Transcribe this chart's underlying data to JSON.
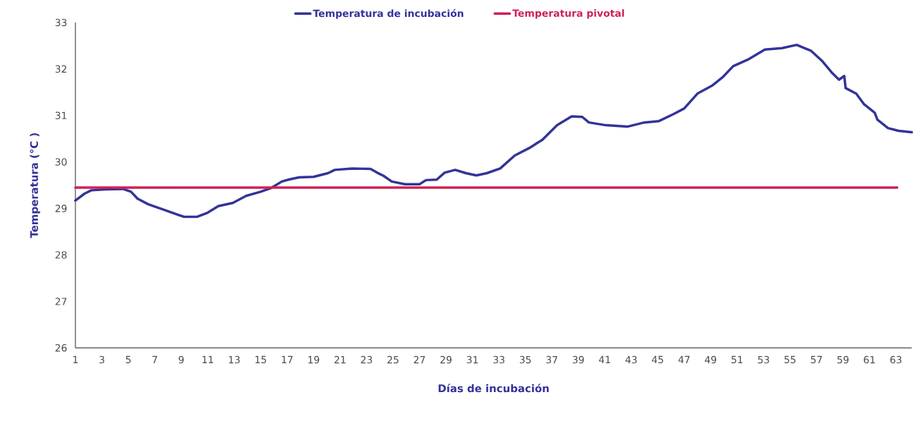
{
  "chart_data": {
    "type": "line",
    "xlabel": "Días de incubación",
    "ylabel": "Temperatura (°C )",
    "xlim": [
      1,
      64.2
    ],
    "ylim": [
      26,
      33
    ],
    "xticks": [
      1,
      3,
      5,
      7,
      9,
      11,
      13,
      15,
      17,
      19,
      21,
      23,
      25,
      27,
      29,
      31,
      33,
      35,
      37,
      39,
      41,
      43,
      45,
      47,
      49,
      51,
      53,
      55,
      57,
      59,
      61,
      63
    ],
    "yticks": [
      26,
      27,
      28,
      29,
      30,
      31,
      32,
      33
    ],
    "grid": false,
    "legend": "top",
    "marker": "none",
    "line_style": "solid",
    "series": [
      {
        "name": "Temperatura de incubación",
        "color": "#333399",
        "x": [
          1,
          1.7,
          2.2,
          3.3,
          4.6,
          5.2,
          5.7,
          6.5,
          7.6,
          8.5,
          9.2,
          10.2,
          11,
          11.8,
          12.9,
          13.9,
          15,
          15.8,
          16.6,
          17.1,
          17.9,
          19,
          20.1,
          20.6,
          21.9,
          23.3,
          23.8,
          24.3,
          24.9,
          25.9,
          27,
          27.5,
          28.3,
          28.9,
          29.7,
          30.5,
          31.3,
          32.1,
          33.1,
          34.2,
          35.3,
          36.3,
          37.4,
          38.5,
          39.3,
          39.8,
          41.1,
          42.7,
          44,
          45.1,
          46.2,
          47,
          48,
          49.1,
          49.9,
          50.7,
          51.8,
          53.1,
          54.4,
          55.5,
          56.6,
          57.4,
          58.2,
          58.7,
          59.1,
          59.2,
          60,
          60.6,
          61.4,
          61.6,
          62.4,
          63.2,
          64.2
        ],
        "values": [
          29.17,
          29.32,
          29.39,
          29.41,
          29.42,
          29.36,
          29.21,
          29.09,
          28.98,
          28.89,
          28.82,
          28.82,
          28.91,
          29.05,
          29.12,
          29.27,
          29.36,
          29.44,
          29.58,
          29.62,
          29.67,
          29.68,
          29.76,
          29.83,
          29.86,
          29.85,
          29.77,
          29.7,
          29.58,
          29.52,
          29.52,
          29.61,
          29.62,
          29.77,
          29.83,
          29.76,
          29.71,
          29.76,
          29.86,
          30.14,
          30.3,
          30.48,
          30.79,
          30.98,
          30.97,
          30.85,
          30.79,
          30.76,
          30.85,
          30.88,
          31.03,
          31.15,
          31.47,
          31.64,
          31.82,
          32.06,
          32.2,
          32.42,
          32.45,
          32.52,
          32.39,
          32.18,
          31.91,
          31.77,
          31.85,
          31.59,
          31.47,
          31.24,
          31.06,
          30.91,
          30.73,
          30.67,
          30.64
        ]
      },
      {
        "name": "Temperatura pivotal",
        "color": "#cc2255",
        "x": [
          1,
          63.1
        ],
        "values": [
          29.45,
          29.45
        ]
      }
    ]
  }
}
